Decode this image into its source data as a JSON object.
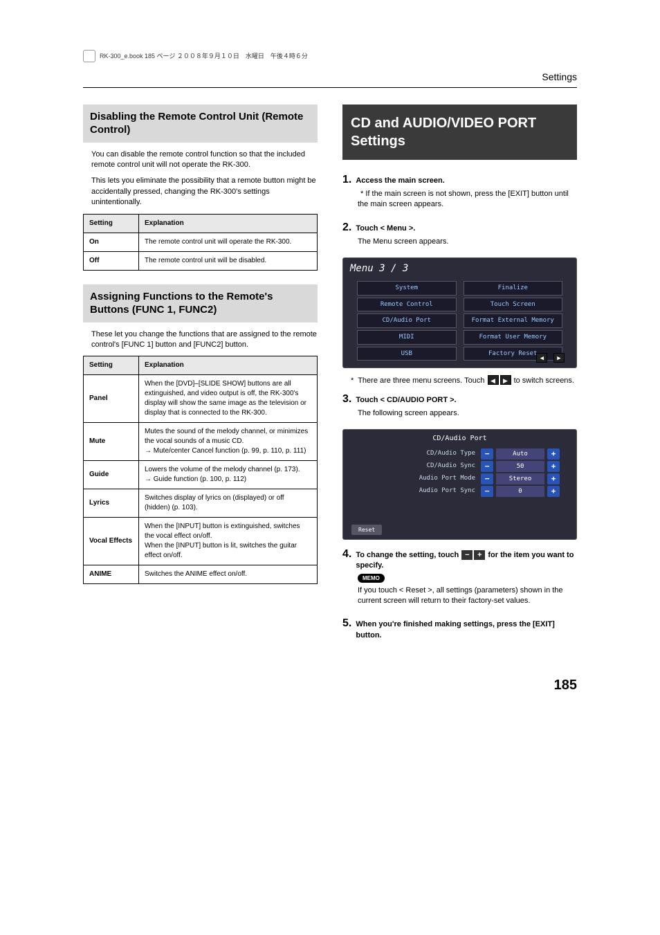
{
  "print_marker_text": "RK-300_e.book  185 ページ  ２００８年９月１０日　水曜日　午後４時６分",
  "header_label": "Settings",
  "page_number": "185",
  "left": {
    "sec1": {
      "title": "Disabling the Remote Control Unit (Remote Control)",
      "para1": "You can disable the remote control function so that the included remote control unit will not operate the RK-300.",
      "para2": "This lets you eliminate the possibility that a remote button might be accidentally pressed, changing the RK-300's settings unintentionally.",
      "table": {
        "h1": "Setting",
        "h2": "Explanation",
        "r1k": "On",
        "r1v": "The remote control unit will operate the RK-300.",
        "r2k": "Off",
        "r2v": "The remote control unit will be disabled."
      }
    },
    "sec2": {
      "title": "Assigning Functions to the Remote's Buttons (FUNC 1, FUNC2)",
      "para1": "These let you change the functions that are assigned to the remote control's [FUNC 1] button and [FUNC2] button.",
      "table": {
        "h1": "Setting",
        "h2": "Explanation",
        "r1k": "Panel",
        "r1v": "When the [DVD]–[SLIDE SHOW] buttons are all extinguished, and video output is off, the RK-300's display will show the same image as the television or display that is connected to the RK-300.",
        "r2k": "Mute",
        "r2v": "Mutes the sound of the melody channel, or minimizes the vocal sounds of a music CD.\n→ Mute/center Cancel function (p. 99, p. 110, p. 111)",
        "r3k": "Guide",
        "r3v": "Lowers the volume of the melody channel (p. 173).\n→ Guide function (p. 100, p. 112)",
        "r4k": "Lyrics",
        "r4v": "Switches display of lyrics on (displayed) or off (hidden) (p. 103).",
        "r5k": "Vocal Effects",
        "r5v": "When the [INPUT] button is extinguished, switches the vocal effect on/off.\nWhen the [INPUT] button is lit, switches the guitar effect on/off.",
        "r6k": "ANIME",
        "r6v": "Switches the ANIME effect on/off."
      }
    }
  },
  "right": {
    "big_title": "CD and AUDIO/VIDEO PORT Settings",
    "steps": {
      "s1": {
        "num": "1.",
        "head": "Access the main screen.",
        "body": "If the main screen is not shown, press the [EXIT] button until the main screen appears.",
        "star": "*"
      },
      "s2": {
        "num": "2.",
        "head": "Touch < Menu >.",
        "body": "The Menu screen appears."
      },
      "shot1": {
        "title": "Menu 3 / 3",
        "items": [
          "System",
          "Finalize",
          "Remote Control",
          "Touch Screen",
          "CD/Audio Port",
          "Format External Memory",
          "MIDI",
          "Format User Memory",
          "USB",
          "Factory Reset"
        ]
      },
      "s2b": {
        "star": "*",
        "body_a": "There are three menu screens. Touch ",
        "body_b": " to switch screens."
      },
      "s3": {
        "num": "3.",
        "head": "Touch < CD/AUDIO PORT >.",
        "body": "The following screen appears."
      },
      "shot2": {
        "title": "CD/Audio Port",
        "rows": [
          {
            "label": "CD/Audio Type",
            "val": "Auto"
          },
          {
            "label": "CD/Audio Sync",
            "val": "50"
          },
          {
            "label": "Audio Port Mode",
            "val": "Stereo"
          },
          {
            "label": "Audio Port Sync",
            "val": "0"
          }
        ],
        "reset": "Reset"
      },
      "s4": {
        "num": "4.",
        "head_a": "To change the setting, touch ",
        "head_b": " for the item you want to specify."
      },
      "memo_label": "MEMO",
      "memo_text": "If you touch < Reset >, all settings (parameters) shown in the current screen will return to their factory-set values.",
      "s5": {
        "num": "5.",
        "head": "When you're finished making settings, press the [EXIT] button."
      }
    }
  }
}
